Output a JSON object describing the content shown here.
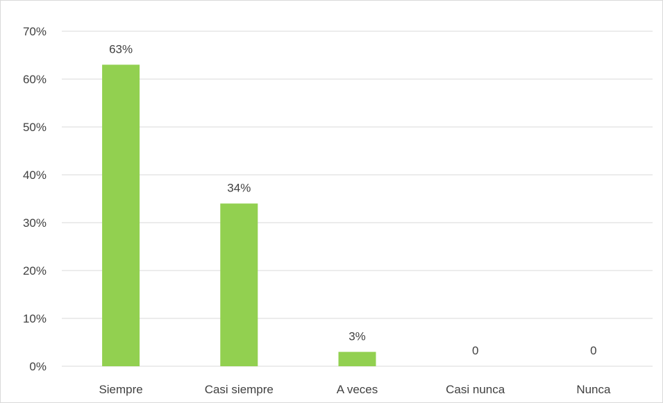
{
  "chart_data": {
    "type": "bar",
    "categories": [
      "Siempre",
      "Casi siempre",
      "A veces",
      "Casi nunca",
      "Nunca"
    ],
    "values": [
      0.63,
      0.34,
      0.03,
      0,
      0
    ],
    "data_labels": [
      "63%",
      "34%",
      "3%",
      "0",
      "0"
    ],
    "ylim": [
      0,
      0.7
    ],
    "y_ticks": [
      0,
      0.1,
      0.2,
      0.3,
      0.4,
      0.5,
      0.6,
      0.7
    ],
    "y_tick_labels": [
      "0%",
      "10%",
      "20%",
      "30%",
      "40%",
      "50%",
      "60%",
      "70%"
    ],
    "title": "",
    "xlabel": "",
    "ylabel": "",
    "grid": true,
    "legend": "none",
    "colors": {
      "bar": "#92d050",
      "grid": "#d9d9d9",
      "text": "#404040"
    }
  }
}
